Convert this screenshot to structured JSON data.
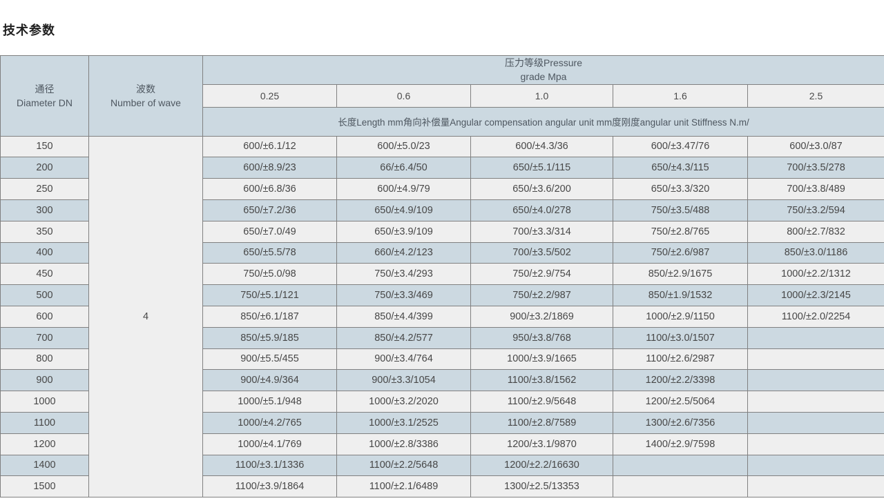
{
  "page": {
    "title": "技术参数"
  },
  "colors": {
    "header_bg": "#ccd9e1",
    "row_bg": "#efefef",
    "row_alt_bg": "#ccd9e1",
    "border": "#808080",
    "text": "#474747"
  },
  "table": {
    "header": {
      "diameter": "通径\nDiameter DN",
      "wave": "波数\nNumber of wave",
      "pressure_group": "压力等级Pressure\ngrade Mpa",
      "pressure_values": [
        "0.25",
        "0.6",
        "1.0",
        "1.6",
        "2.5"
      ],
      "note": "长度Length mm角向补偿量Angular compensation angular unit mm度刚度angular unit Stiffness N.m/"
    },
    "wave_value": "4",
    "rows": [
      {
        "dn": "150",
        "values": [
          "600/±6.1/12",
          "600/±5.0/23",
          "600/±4.3/36",
          "600/±3.47/76",
          "600/±3.0/87"
        ]
      },
      {
        "dn": "200",
        "values": [
          "600/±8.9/23",
          "66/±6.4/50",
          "650/±5.1/115",
          "650/±4.3/115",
          "700/±3.5/278"
        ]
      },
      {
        "dn": "250",
        "values": [
          "600/±6.8/36",
          "600/±4.9/79",
          "650/±3.6/200",
          "650/±3.3/320",
          "700/±3.8/489"
        ]
      },
      {
        "dn": "300",
        "values": [
          "650/±7.2/36",
          "650/±4.9/109",
          "650/±4.0/278",
          "750/±3.5/488",
          "750/±3.2/594"
        ]
      },
      {
        "dn": "350",
        "values": [
          "650/±7.0/49",
          "650/±3.9/109",
          "700/±3.3/314",
          "750/±2.8/765",
          "800/±2.7/832"
        ]
      },
      {
        "dn": "400",
        "values": [
          "650/±5.5/78",
          "660/±4.2/123",
          "700/±3.5/502",
          "750/±2.6/987",
          "850/±3.0/1186"
        ]
      },
      {
        "dn": "450",
        "values": [
          "750/±5.0/98",
          "750/±3.4/293",
          "750/±2.9/754",
          "850/±2.9/1675",
          "1000/±2.2/1312"
        ]
      },
      {
        "dn": "500",
        "values": [
          "750/±5.1/121",
          "750/±3.3/469",
          "750/±2.2/987",
          "850/±1.9/1532",
          "1000/±2.3/2145"
        ]
      },
      {
        "dn": "600",
        "values": [
          "850/±6.1/187",
          "850/±4.4/399",
          "900/±3.2/1869",
          "1000/±2.9/1150",
          "1100/±2.0/2254"
        ]
      },
      {
        "dn": "700",
        "values": [
          "850/±5.9/185",
          "850/±4.2/577",
          "950/±3.8/768",
          "1100/±3.0/1507",
          ""
        ]
      },
      {
        "dn": "800",
        "values": [
          "900/±5.5/455",
          "900/±3.4/764",
          "1000/±3.9/1665",
          "1100/±2.6/2987",
          ""
        ]
      },
      {
        "dn": "900",
        "values": [
          "900/±4.9/364",
          "900/±3.3/1054",
          "1100/±3.8/1562",
          "1200/±2.2/3398",
          ""
        ]
      },
      {
        "dn": "1000",
        "values": [
          "1000/±5.1/948",
          "1000/±3.2/2020",
          "1100/±2.9/5648",
          "1200/±2.5/5064",
          ""
        ]
      },
      {
        "dn": "1100",
        "values": [
          "1000/±4.2/765",
          "1000/±3.1/2525",
          "1100/±2.8/7589",
          "1300/±2.6/7356",
          ""
        ]
      },
      {
        "dn": "1200",
        "values": [
          "1000/±4.1/769",
          "1000/±2.8/3386",
          "1200/±3.1/9870",
          "1400/±2.9/7598",
          ""
        ]
      },
      {
        "dn": "1400",
        "values": [
          "1100/±3.1/1336",
          "1100/±2.2/5648",
          "1200/±2.2/16630",
          "",
          ""
        ]
      },
      {
        "dn": "1500",
        "values": [
          "1100/±3.9/1864",
          "1100/±2.1/6489",
          "1300/±2.5/13353",
          "",
          ""
        ]
      }
    ]
  }
}
